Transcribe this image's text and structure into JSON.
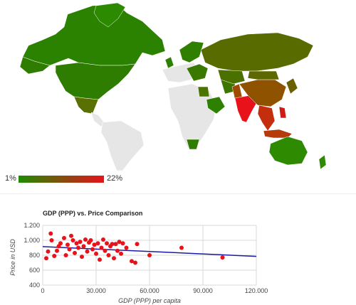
{
  "map": {
    "legend": {
      "min_label": "1%",
      "max_label": "22%",
      "color_low": "#1e8a00",
      "color_high": "#e8121b"
    }
  },
  "chart_data": {
    "type": "scatter",
    "title": "GDP (PPP) vs. Price Comparison",
    "xlabel": "GDP (PPP) per capita",
    "ylabel": "Price in USD",
    "xlim": [
      0,
      120000
    ],
    "ylim": [
      400,
      1200
    ],
    "x_ticks": [
      "0",
      "30.000",
      "60.000",
      "90.000",
      "120.000"
    ],
    "y_ticks": [
      "400",
      "600",
      "800",
      "1.000",
      "1.200"
    ],
    "grid": true,
    "point_color": "#e8121b",
    "trendline_color": "#1a1aa6",
    "points": [
      {
        "x": 2000,
        "y": 760
      },
      {
        "x": 3000,
        "y": 850
      },
      {
        "x": 4500,
        "y": 1090
      },
      {
        "x": 5000,
        "y": 1000
      },
      {
        "x": 6500,
        "y": 790
      },
      {
        "x": 8000,
        "y": 860
      },
      {
        "x": 9000,
        "y": 920
      },
      {
        "x": 10000,
        "y": 960
      },
      {
        "x": 12000,
        "y": 1030
      },
      {
        "x": 13000,
        "y": 800
      },
      {
        "x": 14000,
        "y": 940
      },
      {
        "x": 15000,
        "y": 880
      },
      {
        "x": 16000,
        "y": 1060
      },
      {
        "x": 17000,
        "y": 1000
      },
      {
        "x": 18000,
        "y": 830
      },
      {
        "x": 19000,
        "y": 960
      },
      {
        "x": 20000,
        "y": 900
      },
      {
        "x": 21000,
        "y": 980
      },
      {
        "x": 22000,
        "y": 780
      },
      {
        "x": 23000,
        "y": 920
      },
      {
        "x": 24000,
        "y": 1010
      },
      {
        "x": 25000,
        "y": 850
      },
      {
        "x": 26000,
        "y": 970
      },
      {
        "x": 27000,
        "y": 1000
      },
      {
        "x": 28000,
        "y": 880
      },
      {
        "x": 29000,
        "y": 940
      },
      {
        "x": 30000,
        "y": 820
      },
      {
        "x": 31000,
        "y": 960
      },
      {
        "x": 32000,
        "y": 740
      },
      {
        "x": 33000,
        "y": 900
      },
      {
        "x": 34000,
        "y": 1010
      },
      {
        "x": 35000,
        "y": 860
      },
      {
        "x": 36000,
        "y": 960
      },
      {
        "x": 37000,
        "y": 800
      },
      {
        "x": 38000,
        "y": 920
      },
      {
        "x": 39000,
        "y": 950
      },
      {
        "x": 40000,
        "y": 760
      },
      {
        "x": 41000,
        "y": 950
      },
      {
        "x": 42000,
        "y": 860
      },
      {
        "x": 43000,
        "y": 980
      },
      {
        "x": 44000,
        "y": 820
      },
      {
        "x": 45000,
        "y": 960
      },
      {
        "x": 47000,
        "y": 900
      },
      {
        "x": 50000,
        "y": 720
      },
      {
        "x": 52000,
        "y": 700
      },
      {
        "x": 53000,
        "y": 950
      },
      {
        "x": 60000,
        "y": 800
      },
      {
        "x": 78000,
        "y": 900
      },
      {
        "x": 101000,
        "y": 770
      }
    ],
    "trendline": [
      {
        "x": 0,
        "y": 915
      },
      {
        "x": 120000,
        "y": 785
      }
    ]
  }
}
